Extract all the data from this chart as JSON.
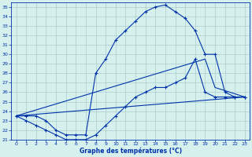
{
  "xlabel": "Graphe des températures (°C)",
  "background_color": "#d6f0ee",
  "grid_color": "#aacccc",
  "line_color": "#0033aa",
  "ylim": [
    21,
    35.5
  ],
  "xlim": [
    -0.5,
    23.5
  ],
  "yticks": [
    21,
    22,
    23,
    24,
    25,
    26,
    27,
    28,
    29,
    30,
    31,
    32,
    33,
    34,
    35
  ],
  "xticks": [
    0,
    1,
    2,
    3,
    4,
    5,
    6,
    7,
    8,
    9,
    10,
    11,
    12,
    13,
    14,
    15,
    16,
    17,
    18,
    19,
    20,
    21,
    22,
    23
  ],
  "series_upper": {
    "x": [
      0,
      1,
      2,
      3,
      4,
      5,
      6,
      7,
      8,
      9,
      10,
      11,
      12,
      13,
      14,
      15,
      16,
      17,
      18,
      19,
      20,
      21,
      22,
      23
    ],
    "y": [
      23.5,
      23.5,
      23.5,
      23.0,
      22.0,
      21.5,
      21.5,
      21.5,
      28.0,
      29.5,
      31.5,
      32.5,
      33.5,
      34.5,
      35.0,
      35.2,
      34.5,
      33.8,
      32.5,
      30.0,
      30.0,
      26.0,
      25.5,
      25.5
    ]
  },
  "series_lower": {
    "x": [
      0,
      1,
      2,
      3,
      4,
      5,
      6,
      7,
      8,
      9,
      10,
      11,
      12,
      13,
      14,
      15,
      16,
      17,
      18,
      19,
      20,
      21,
      22,
      23
    ],
    "y": [
      23.5,
      23.0,
      22.5,
      22.0,
      21.5,
      21.0,
      21.0,
      21.0,
      21.5,
      22.5,
      23.5,
      24.5,
      25.5,
      26.0,
      26.5,
      26.5,
      27.0,
      27.5,
      29.5,
      26.0,
      25.5,
      25.5,
      25.5,
      25.5
    ]
  },
  "series_diag1": {
    "x": [
      0,
      23
    ],
    "y": [
      23.5,
      25.5
    ]
  },
  "series_diag2": {
    "x": [
      0,
      19,
      20,
      23
    ],
    "y": [
      23.5,
      29.5,
      26.5,
      25.5
    ]
  }
}
